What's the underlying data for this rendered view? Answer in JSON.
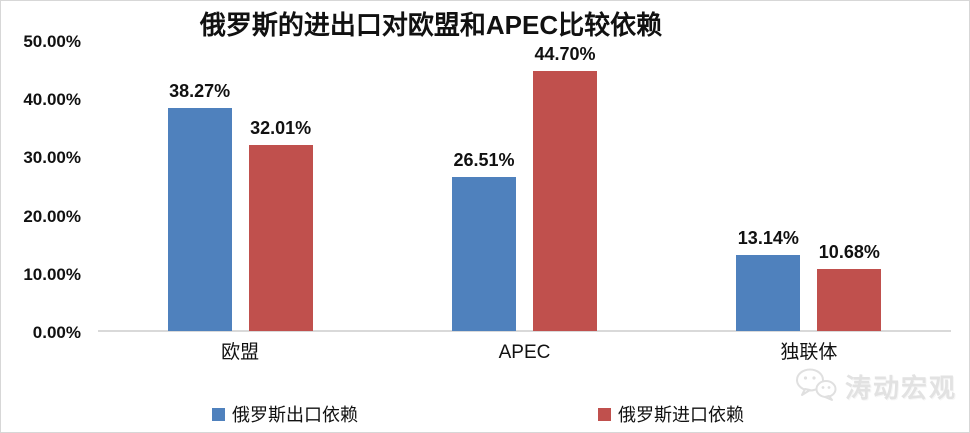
{
  "title": "俄罗斯的进出口对欧盟和APEC比较依赖",
  "colors": {
    "export_series": "#4F81BD",
    "import_series": "#C0504D",
    "axis_line": "#D9D9D9",
    "text": "#111111",
    "watermark": "#E2E2E2"
  },
  "watermark": {
    "text": "涛动宏观",
    "icon": "wechat-icon"
  },
  "legend": {
    "export_label": "俄罗斯出口依赖",
    "import_label": "俄罗斯进口依赖"
  },
  "chart_data": {
    "type": "bar",
    "title": "俄罗斯的进出口对欧盟和APEC比较依赖",
    "categories": [
      "欧盟",
      "APEC",
      "独联体"
    ],
    "category_keys": [
      "eu",
      "apec",
      "cis"
    ],
    "series": [
      {
        "key": "export",
        "name": "俄罗斯出口依赖",
        "color": "#4F81BD",
        "values": [
          38.27,
          26.51,
          13.14
        ],
        "data_labels": [
          "38.27%",
          "26.51%",
          "13.14%"
        ]
      },
      {
        "key": "import",
        "name": "俄罗斯进口依赖",
        "color": "#C0504D",
        "values": [
          32.01,
          44.7,
          10.68
        ],
        "data_labels": [
          "32.01%",
          "44.70%",
          "10.68%"
        ]
      }
    ],
    "xlabel": "",
    "ylabel": "",
    "y_axis": {
      "min": 0,
      "max": 50,
      "tick_step": 10,
      "tick_labels": [
        "0.00%",
        "10.00%",
        "20.00%",
        "30.00%",
        "40.00%",
        "50.00%"
      ]
    },
    "ylim": [
      0,
      50
    ],
    "grid": false,
    "legend_position": "bottom",
    "data_labels_shown": true
  }
}
